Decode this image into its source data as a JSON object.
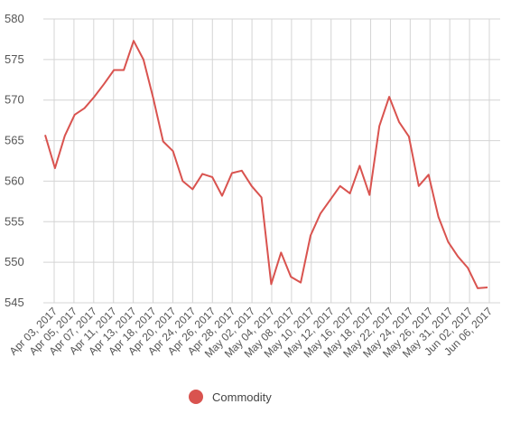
{
  "chart_data": {
    "type": "line",
    "title": "",
    "xlabel": "",
    "ylabel": "",
    "ylim": [
      545,
      580
    ],
    "yticks": [
      545,
      550,
      555,
      560,
      565,
      570,
      575,
      580
    ],
    "grid": true,
    "legend_position": "bottom",
    "x_tick_labels": [
      "Apr 03, 2017",
      "Apr 05, 2017",
      "Apr 07, 2017",
      "Apr 11, 2017",
      "Apr 13, 2017",
      "Apr 18, 2017",
      "Apr 20, 2017",
      "Apr 24, 2017",
      "Apr 26, 2017",
      "Apr 28, 2017",
      "May 02, 2017",
      "May 04, 2017",
      "May 08, 2017",
      "May 10, 2017",
      "May 12, 2017",
      "May 16, 2017",
      "May 18, 2017",
      "May 22, 2017",
      "May 24, 2017",
      "May 26, 2017",
      "May 31, 2017",
      "Jun 02, 2017",
      "Jun 06, 2017"
    ],
    "series": [
      {
        "name": "Commodity",
        "color": "#d9534f",
        "values": [
          565.7,
          561.6,
          565.6,
          568.2,
          569.0,
          570.4,
          572.0,
          573.7,
          573.7,
          577.3,
          575.0,
          570.2,
          564.9,
          563.7,
          560.0,
          559.0,
          560.9,
          560.5,
          558.2,
          561.0,
          561.3,
          559.4,
          558.0,
          547.3,
          551.2,
          548.2,
          547.5,
          553.3,
          556.0,
          557.7,
          559.4,
          558.5,
          561.9,
          558.3,
          566.8,
          570.4,
          567.3,
          565.5,
          559.4,
          560.8,
          555.6,
          552.5,
          550.7,
          549.3,
          546.8,
          546.9
        ]
      }
    ]
  }
}
